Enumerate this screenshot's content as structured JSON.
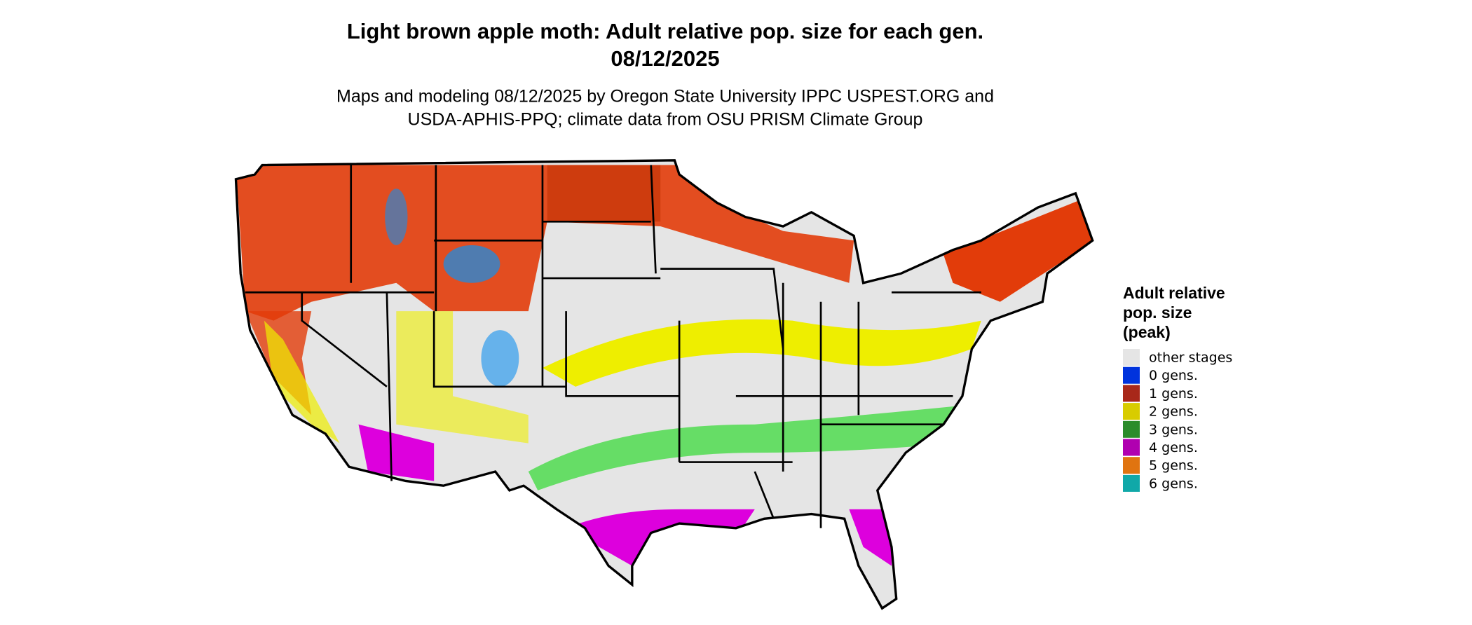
{
  "header": {
    "title_line1": "Light brown apple moth: Adult relative pop. size for each gen.",
    "title_line2": "08/12/2025",
    "subtitle_line1": "Maps and modeling 08/12/2025 by Oregon State University IPPC USPEST.ORG and",
    "subtitle_line2": "USDA-APHIS-PPQ; climate data from OSU PRISM Climate Group"
  },
  "legend": {
    "title_lines": [
      "Adult relative",
      "pop. size",
      "(peak)"
    ],
    "items": [
      {
        "label": "other stages",
        "color": "#e5e5e5"
      },
      {
        "label": "0 gens.",
        "color": "#0033dd"
      },
      {
        "label": "1 gens.",
        "color": "#a8281a"
      },
      {
        "label": "2 gens.",
        "color": "#d8cc00"
      },
      {
        "label": "3 gens.",
        "color": "#2a8c2a"
      },
      {
        "label": "4 gens.",
        "color": "#b000b0"
      },
      {
        "label": "5 gens.",
        "color": "#e07410"
      },
      {
        "label": "6 gens.",
        "color": "#10a8a8"
      }
    ]
  }
}
